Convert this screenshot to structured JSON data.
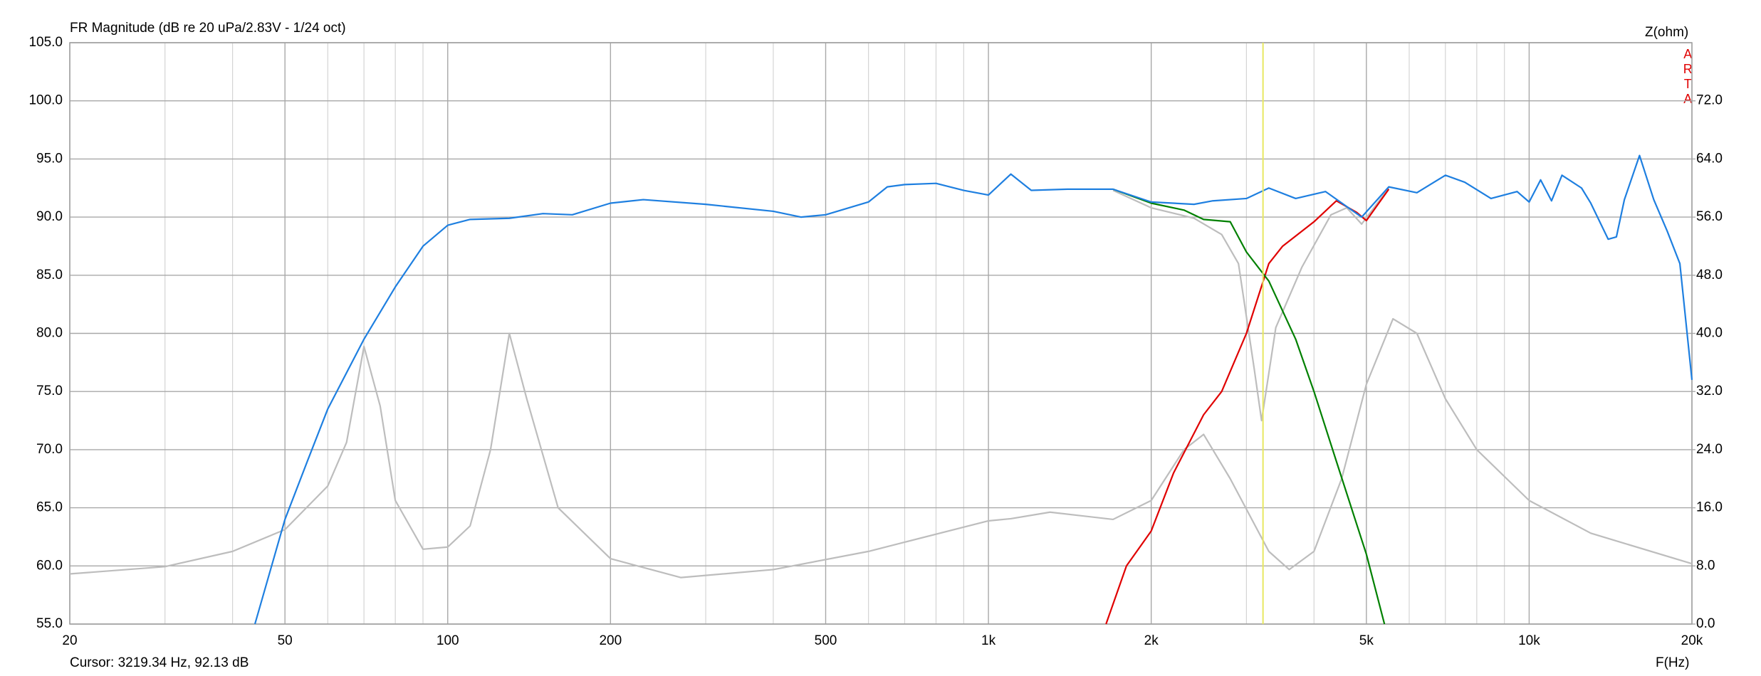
{
  "chart_data": {
    "type": "line",
    "title": "FR Magnitude (dB re 20 uPa/2.83V - 1/24 oct)",
    "y2_label": "Z(ohm)",
    "x_label": "F(Hz)",
    "watermark": "ARTA",
    "cursor_label": "Cursor: 3219.34 Hz, 92.13 dB",
    "cursor_x": 3219.34,
    "cursor_color": "#e8e860",
    "xscale": "log",
    "grid": true,
    "xlim": [
      20,
      20000
    ],
    "ylim": [
      55,
      105
    ],
    "y2lim": [
      0,
      80
    ],
    "xticks": [
      20,
      50,
      100,
      200,
      500,
      {
        "value": 1000,
        "label": "1k"
      },
      {
        "value": 2000,
        "label": "2k"
      },
      {
        "value": 5000,
        "label": "5k"
      },
      {
        "value": 10000,
        "label": "10k"
      },
      {
        "value": 20000,
        "label": "20k"
      }
    ],
    "xminorticks": [
      30,
      40,
      60,
      70,
      80,
      90,
      300,
      400,
      600,
      700,
      800,
      900,
      3000,
      4000,
      6000,
      7000,
      8000,
      9000
    ],
    "yticks": [
      {
        "value": 55,
        "label": "55.0"
      },
      {
        "value": 60,
        "label": "60.0"
      },
      {
        "value": 65,
        "label": "65.0"
      },
      {
        "value": 70,
        "label": "70.0"
      },
      {
        "value": 75,
        "label": "75.0"
      },
      {
        "value": 80,
        "label": "80.0"
      },
      {
        "value": 85,
        "label": "85.0"
      },
      {
        "value": 90,
        "label": "90.0"
      },
      {
        "value": 95,
        "label": "95.0"
      },
      {
        "value": 100,
        "label": "100.0"
      },
      {
        "value": 105,
        "label": "105.0"
      }
    ],
    "y2ticks": [
      {
        "value": 0,
        "label": "0.0"
      },
      {
        "value": 8,
        "label": "8.0"
      },
      {
        "value": 16,
        "label": "16.0"
      },
      {
        "value": 24,
        "label": "24.0"
      },
      {
        "value": 32,
        "label": "32.0"
      },
      {
        "value": 40,
        "label": "40.0"
      },
      {
        "value": 48,
        "label": "48.0"
      },
      {
        "value": 56,
        "label": "56.0"
      },
      {
        "value": 64,
        "label": "64.0"
      },
      {
        "value": 72,
        "label": "72.0"
      }
    ],
    "series": [
      {
        "color": "#bdbdbd",
        "axis": "y2",
        "x": [
          20,
          30,
          40,
          50,
          60,
          65,
          70,
          75,
          80,
          90,
          100,
          110,
          120,
          130,
          140,
          160,
          200,
          270,
          400,
          600,
          1000,
          1100,
          1300,
          1700,
          2000,
          2300,
          2500,
          2800,
          3300,
          3600,
          4000,
          4500,
          5000,
          5600,
          6200,
          7000,
          8000,
          10000,
          13000,
          20000
        ],
        "values": [
          6.9,
          7.9,
          10,
          13,
          19,
          25,
          38.2,
          30,
          17,
          10.3,
          10.6,
          13.5,
          24,
          40,
          31,
          16,
          9,
          6.4,
          7.5,
          10,
          14.2,
          14.5,
          15.4,
          14.4,
          17,
          24,
          26.1,
          20,
          10,
          7.5,
          10,
          20,
          33,
          42,
          40,
          31,
          24,
          17,
          12.5,
          8.3
        ]
      },
      {
        "color": "#bdbdbd",
        "x": [
          1700,
          2000,
          2400,
          2700,
          2900,
          3100,
          3200,
          3400,
          3800,
          4300,
          4600,
          4900,
          5300,
          5500
        ],
        "values": [
          92.3,
          90.8,
          89.9,
          88.5,
          86,
          77,
          72.5,
          80.5,
          85.7,
          90.2,
          90.8,
          89.4,
          91.5,
          92.5
        ]
      },
      {
        "color": "#e00000",
        "x": [
          1650,
          1800,
          2000,
          2200,
          2500,
          2700,
          3000,
          3300,
          3500,
          4000,
          4400,
          4800,
          5000,
          5500
        ],
        "values": [
          55,
          60,
          63,
          68,
          73,
          75,
          80,
          86,
          87.5,
          89.6,
          91.4,
          90.4,
          89.7,
          92.4
        ]
      },
      {
        "color": "#008000",
        "x": [
          1700,
          2000,
          2300,
          2500,
          2800,
          3000,
          3300,
          3700,
          4000,
          4400,
          5000,
          5400
        ],
        "values": [
          92.4,
          91.2,
          90.6,
          89.8,
          89.6,
          87,
          84.5,
          79.5,
          75,
          69,
          61,
          55
        ]
      },
      {
        "color": "#1e7fe0",
        "x": [
          44,
          50,
          55,
          60,
          70,
          80,
          90,
          100,
          110,
          130,
          150,
          170,
          200,
          230,
          300,
          400,
          450,
          500,
          600,
          650,
          700,
          800,
          900,
          1000,
          1100,
          1200,
          1400,
          1700,
          2000,
          2400,
          2600,
          3000,
          3300,
          3700,
          4200,
          4900,
          5500,
          6200,
          7000,
          7600,
          8500,
          9500,
          10000,
          10500,
          11000,
          11500,
          12500,
          13000,
          14000,
          14500,
          15000,
          16000,
          17000,
          18000,
          19000,
          20000
        ],
        "values": [
          55,
          64,
          69,
          73.5,
          79.5,
          84,
          87.5,
          89.3,
          89.8,
          89.9,
          90.3,
          90.2,
          91.2,
          91.5,
          91.1,
          90.5,
          90,
          90.2,
          91.3,
          92.6,
          92.8,
          92.9,
          92.3,
          91.9,
          93.7,
          92.3,
          92.4,
          92.4,
          91.3,
          91.1,
          91.4,
          91.6,
          92.5,
          91.6,
          92.2,
          90,
          92.6,
          92.1,
          93.6,
          93,
          91.6,
          92.2,
          91.3,
          93.2,
          91.4,
          93.6,
          92.5,
          91.2,
          88.1,
          88.3,
          91.5,
          95.3,
          91.5,
          88.8,
          86,
          76
        ]
      }
    ]
  }
}
